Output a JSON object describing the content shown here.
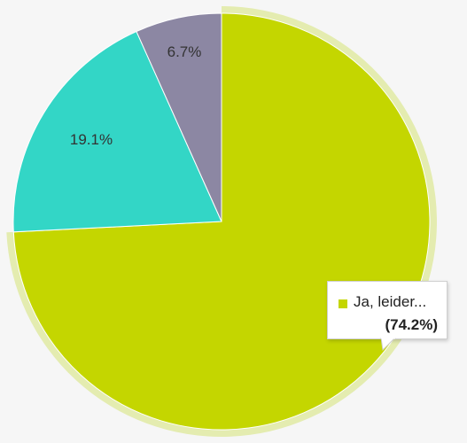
{
  "chart_data": {
    "type": "pie",
    "title": "",
    "slices": [
      {
        "label": "Ja, leider...",
        "value": 74.2,
        "label_text": "74.2%",
        "color": "#c4d600",
        "highlighted": true
      },
      {
        "label": "",
        "value": 19.1,
        "label_text": "19.1%",
        "color": "#33d6c6",
        "highlighted": false
      },
      {
        "label": "",
        "value": 6.7,
        "label_text": "6.7%",
        "color": "#8c87a3",
        "highlighted": false
      }
    ],
    "start_angle_deg": 0,
    "direction": "clockwise",
    "highlight_halo_color": "#e4ecb0"
  },
  "tooltip": {
    "name": "Ja, leider...",
    "value": "(74.2%)",
    "swatch_color": "#c4d600"
  }
}
